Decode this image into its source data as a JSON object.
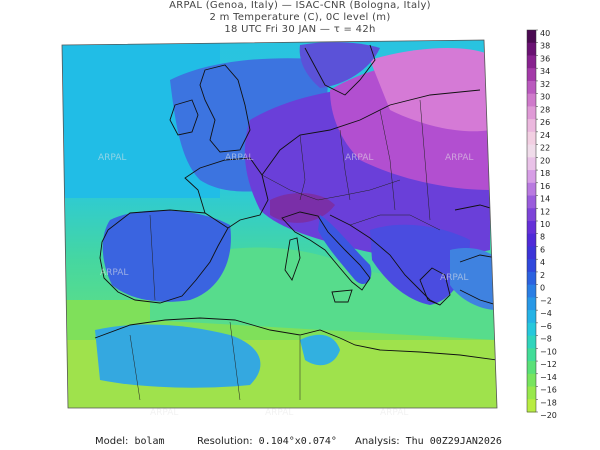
{
  "header": {
    "line1": "ARPAL (Genoa, Italy)  —  ISAC-CNR (Bologna, Italy)",
    "line2": "2 m Temperature (C), 0C level (m)",
    "line3": "18 UTC Fri 30 JAN  —  τ = 42h"
  },
  "colorbar": {
    "ticks": [
      "40",
      "38",
      "36",
      "34",
      "32",
      "30",
      "28",
      "26",
      "24",
      "22",
      "20",
      "18",
      "16",
      "14",
      "12",
      "10",
      "8",
      "6",
      "4",
      "2",
      "0",
      "−2",
      "−4",
      "−6",
      "−8",
      "−10",
      "−12",
      "−14",
      "−16",
      "−18",
      "−20"
    ],
    "colors": [
      "#5c0a5e",
      "#7a1f80",
      "#943d99",
      "#ab5bad",
      "#c079bd",
      "#d494c9",
      "#e3aed4",
      "#eec8de",
      "#f0dbe6",
      "#f4eef2",
      "#ffffff",
      "#ffffff"
    ]
  },
  "watermark": "ARPAL",
  "footer": {
    "model_label": "Model:",
    "model_value": "bolam",
    "resolution_label": "Resolution:",
    "resolution_value": "0.104°x0.074°",
    "analysis_label": "Analysis:",
    "analysis_value": "Thu 00Z29JAN2026"
  }
}
